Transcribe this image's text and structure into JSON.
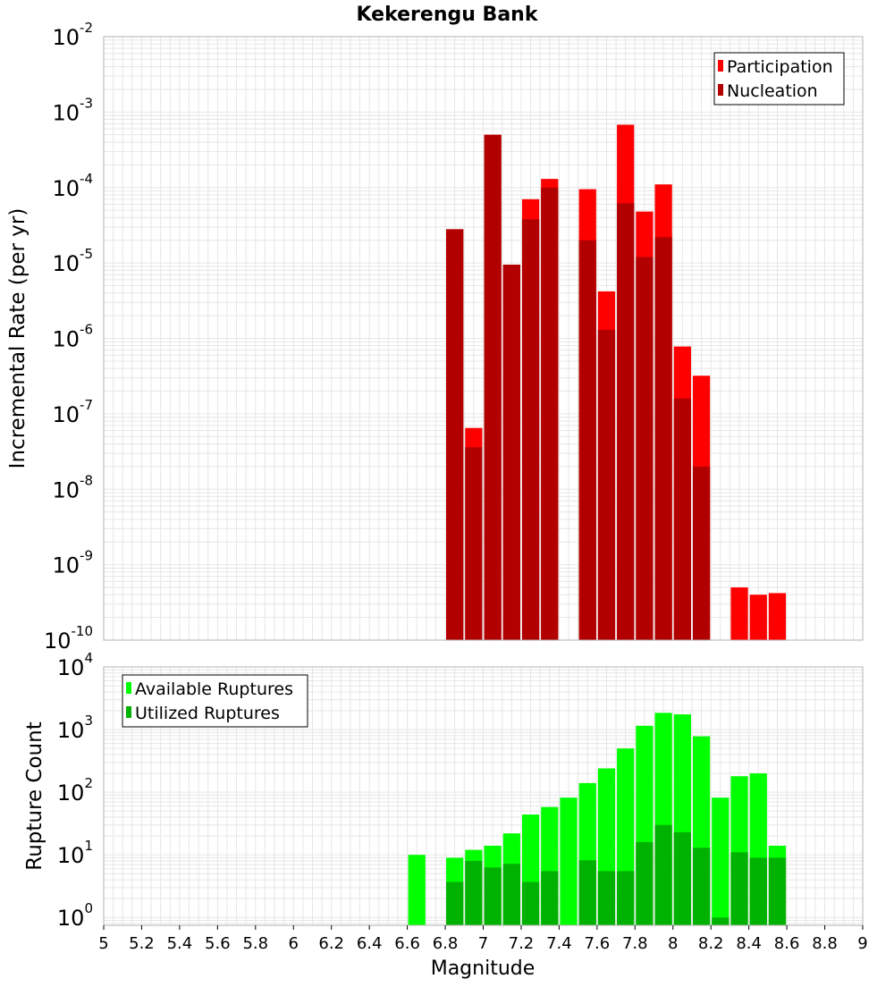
{
  "title": "Kekerengu Bank",
  "x_axis_label": "Magnitude",
  "x_ticks": [
    "5",
    "5.2",
    "5.4",
    "5.6",
    "5.8",
    "6",
    "6.2",
    "6.4",
    "6.6",
    "6.8",
    "7",
    "7.2",
    "7.4",
    "7.6",
    "7.8",
    "8",
    "8.2",
    "8.4",
    "8.6",
    "8.8",
    "9"
  ],
  "colors": {
    "participation": "#ff0000",
    "nucleation": "#b20000",
    "available": "#00ff00",
    "utilized": "#00b200",
    "grid": "#e6e6e6",
    "frame": "#b3b3b3"
  },
  "chart_data": [
    {
      "type": "bar",
      "panel": "top",
      "scale": "log",
      "ylabel": "Incremental Rate (per yr)",
      "xlim": [
        5,
        9
      ],
      "ylim": [
        1e-10,
        0.01
      ],
      "y_tick_exponents": [
        "-2",
        "-3",
        "-4",
        "-5",
        "-6",
        "-7",
        "-8",
        "-9",
        "-10"
      ],
      "y_tick_base": "10",
      "bin_width": 0.1,
      "legend_position": "top-right",
      "series": [
        {
          "name": "Participation",
          "x": [
            6.85,
            6.95,
            7.05,
            7.15,
            7.25,
            7.35,
            7.55,
            7.65,
            7.75,
            7.85,
            7.95,
            8.05,
            8.15,
            8.35,
            8.45,
            8.55
          ],
          "values": [
            2.8e-05,
            6.5e-08,
            0.0005,
            9.5e-06,
            7e-05,
            0.00013,
            9.5e-05,
            4.2e-06,
            0.00068,
            4.8e-05,
            0.00011,
            7.8e-07,
            3.2e-07,
            5e-10,
            4e-10,
            4.2e-10
          ]
        },
        {
          "name": "Nucleation",
          "x": [
            6.85,
            6.95,
            7.05,
            7.15,
            7.25,
            7.35,
            7.55,
            7.65,
            7.75,
            7.85,
            7.95,
            8.05,
            8.15
          ],
          "values": [
            2.8e-05,
            3.6e-08,
            0.0005,
            9.5e-06,
            3.8e-05,
            0.0001,
            2e-05,
            1.3e-06,
            6.2e-05,
            1.2e-05,
            2.2e-05,
            1.6e-07,
            2e-08
          ]
        }
      ]
    },
    {
      "type": "bar",
      "panel": "bottom",
      "scale": "log",
      "ylabel": "Rupture Count",
      "xlabel": "Magnitude",
      "xlim": [
        5,
        9
      ],
      "ylim": [
        0.75,
        10000
      ],
      "y_tick_exponents": [
        "4",
        "3",
        "2",
        "1",
        "0"
      ],
      "y_tick_base": "10",
      "bin_width": 0.1,
      "legend_position": "top-left",
      "series": [
        {
          "name": "Available Ruptures",
          "x": [
            6.65,
            6.85,
            6.95,
            7.05,
            7.15,
            7.25,
            7.35,
            7.45,
            7.55,
            7.65,
            7.75,
            7.85,
            7.95,
            8.05,
            8.15,
            8.25,
            8.35,
            8.45,
            8.55
          ],
          "values": [
            10,
            9,
            12,
            14,
            22,
            44,
            58,
            82,
            140,
            240,
            500,
            1150,
            1850,
            1750,
            780,
            82,
            180,
            200,
            14
          ]
        },
        {
          "name": "Utilized Ruptures",
          "x": [
            6.85,
            6.95,
            7.05,
            7.15,
            7.25,
            7.35,
            7.55,
            7.65,
            7.75,
            7.85,
            7.95,
            8.05,
            8.15,
            8.25,
            8.35,
            8.45,
            8.55
          ],
          "values": [
            3.7,
            8,
            6.3,
            7.2,
            3.7,
            5.5,
            8.2,
            5.5,
            5.5,
            16,
            30,
            23,
            13,
            1,
            11,
            9,
            9
          ]
        }
      ]
    }
  ]
}
